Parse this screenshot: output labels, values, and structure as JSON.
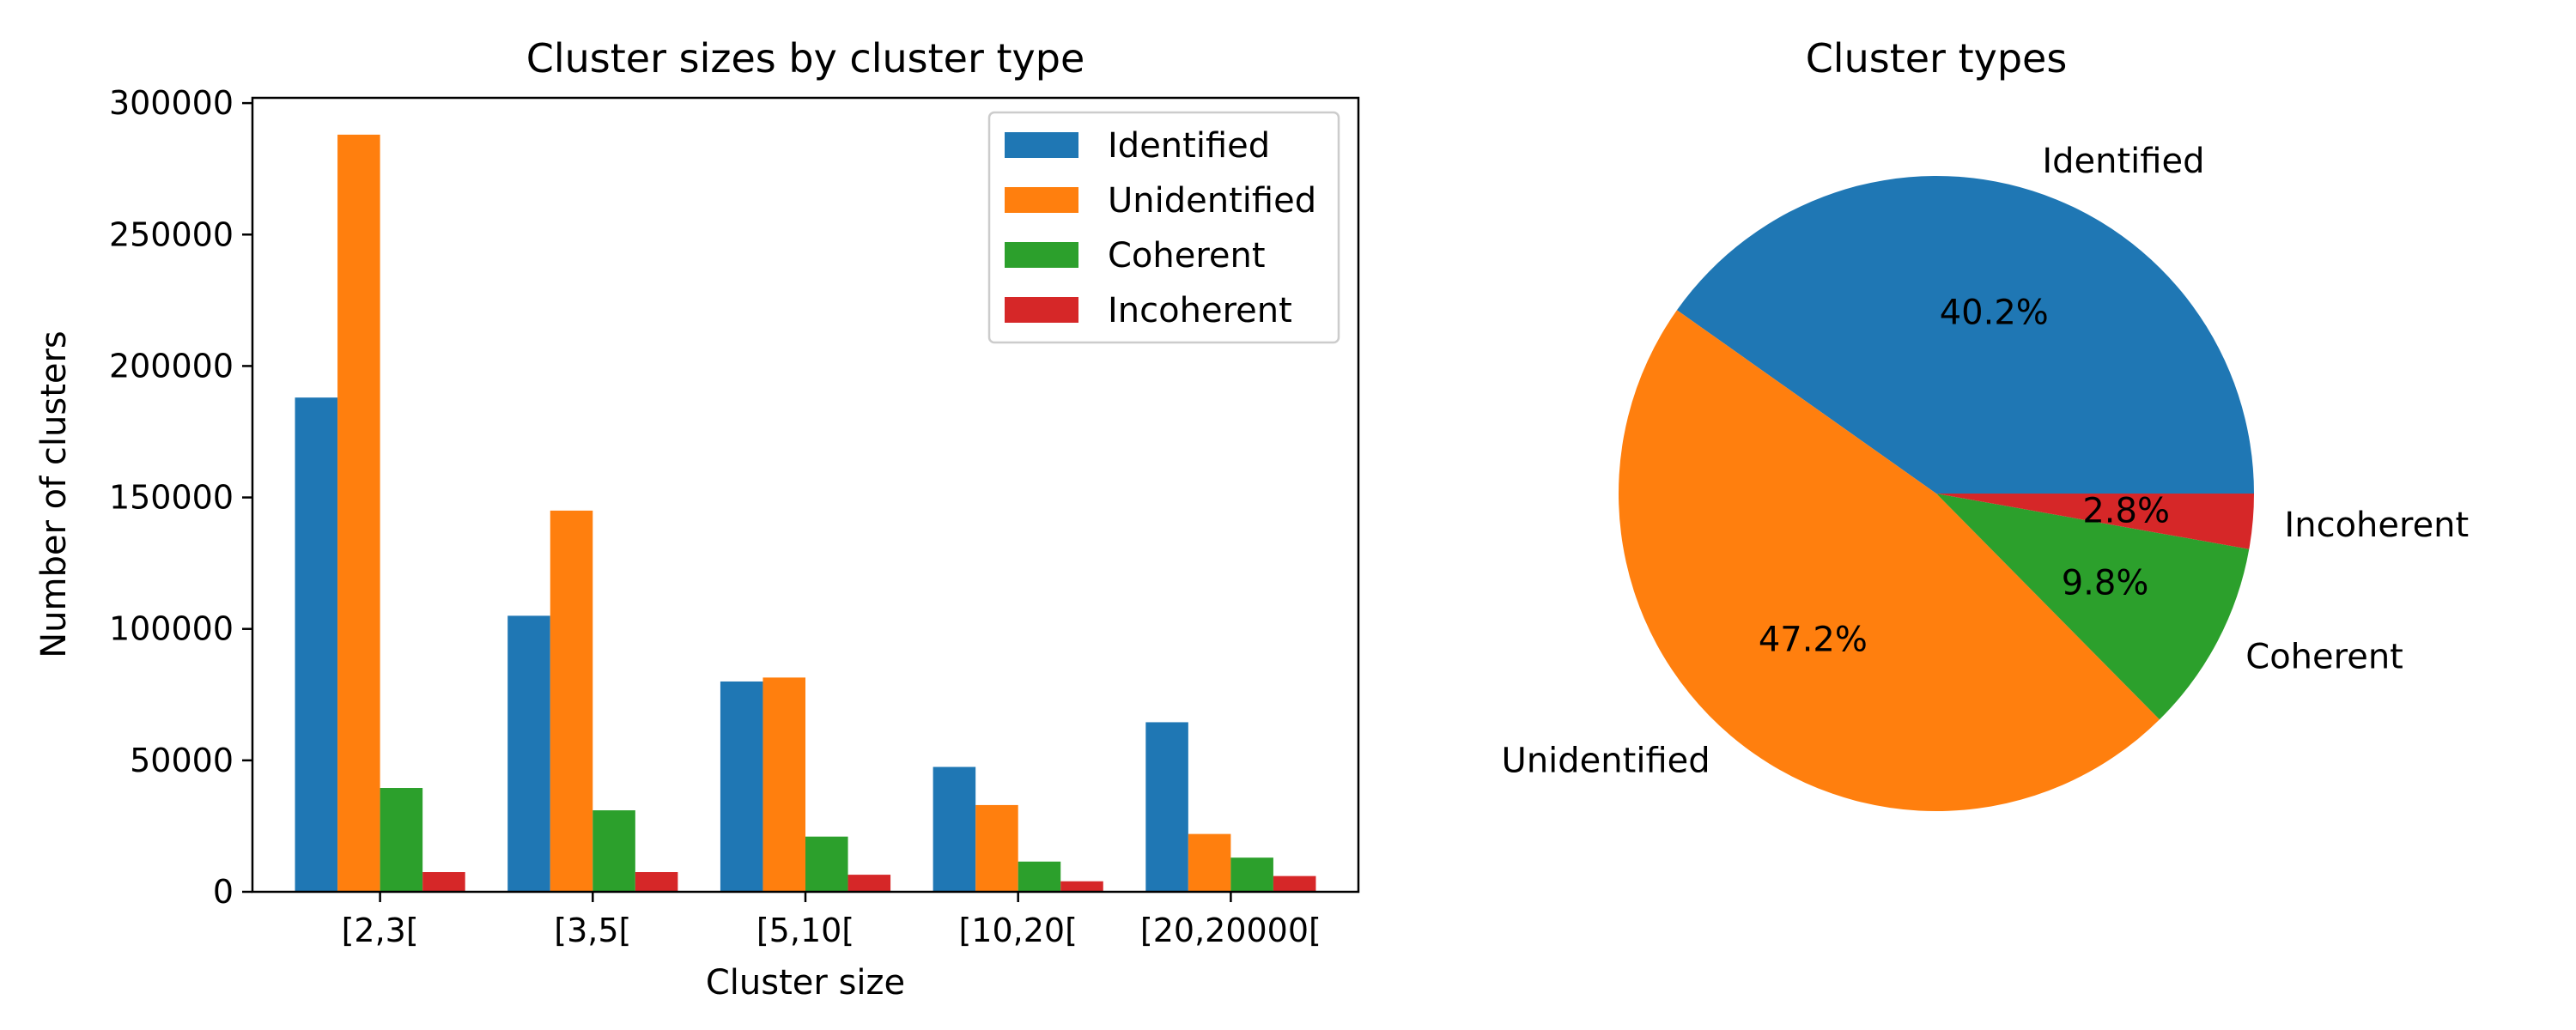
{
  "chart_data": [
    {
      "type": "bar",
      "title": "Cluster sizes by cluster type",
      "xlabel": "Cluster size",
      "ylabel": "Number of clusters",
      "categories": [
        "[2,3[",
        "[3,5[",
        "[5,10[",
        "[10,20[",
        "[20,20000["
      ],
      "ylim": [
        0,
        302000
      ],
      "yticks": [
        0,
        50000,
        100000,
        150000,
        200000,
        250000,
        300000
      ],
      "grid": false,
      "legend_position": "top-right",
      "series": [
        {
          "name": "Identified",
          "color": "#1f77b4",
          "values": [
            188000,
            105000,
            80000,
            47500,
            64500
          ]
        },
        {
          "name": "Unidentified",
          "color": "#ff7f0e",
          "values": [
            288000,
            145000,
            81500,
            33000,
            22000
          ]
        },
        {
          "name": "Coherent",
          "color": "#2ca02c",
          "values": [
            39500,
            31000,
            21000,
            11500,
            13000
          ]
        },
        {
          "name": "Incoherent",
          "color": "#d62728",
          "values": [
            7500,
            7500,
            6500,
            4000,
            6000
          ]
        }
      ]
    },
    {
      "type": "pie",
      "title": "Cluster types",
      "labels": [
        "Identified",
        "Unidentified",
        "Coherent",
        "Incoherent"
      ],
      "values": [
        40.2,
        47.2,
        9.8,
        2.8
      ],
      "pct_labels": [
        "40.2%",
        "47.2%",
        "9.8%",
        "2.8%"
      ],
      "colors": [
        "#1f77b4",
        "#ff7f0e",
        "#2ca02c",
        "#d62728"
      ]
    }
  ]
}
